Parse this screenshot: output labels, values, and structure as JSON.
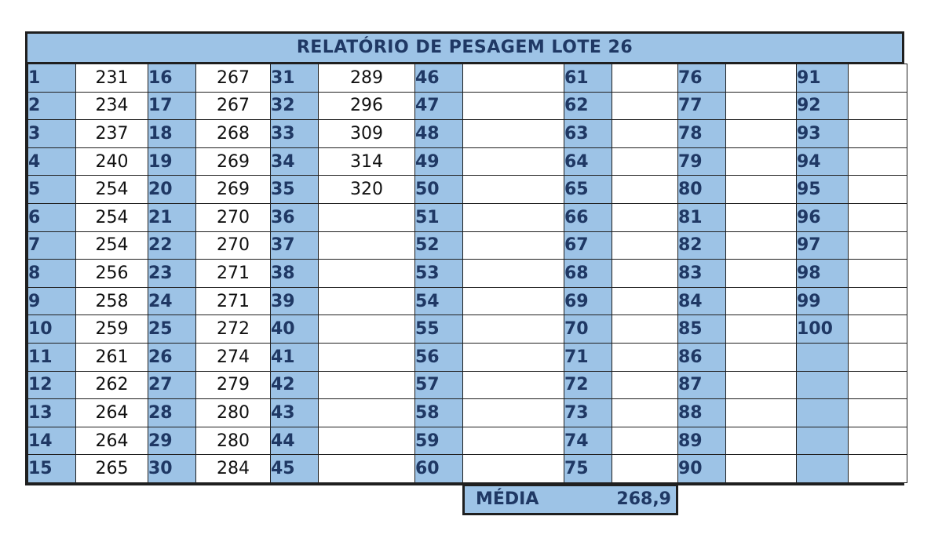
{
  "title": "RELATÓRIO DE PESAGEM LOTE 26",
  "columns": [
    {
      "numbers": [
        "1",
        "2",
        "3",
        "4",
        "5",
        "6",
        "7",
        "8",
        "9",
        "10",
        "11",
        "12",
        "13",
        "14",
        "15"
      ],
      "weights": [
        "231",
        "234",
        "237",
        "240",
        "254",
        "254",
        "254",
        "256",
        "258",
        "259",
        "261",
        "262",
        "264",
        "264",
        "265"
      ]
    },
    {
      "numbers": [
        "16",
        "17",
        "18",
        "19",
        "20",
        "21",
        "22",
        "23",
        "24",
        "25",
        "26",
        "27",
        "28",
        "29",
        "30"
      ],
      "weights": [
        "267",
        "267",
        "268",
        "269",
        "269",
        "270",
        "270",
        "271",
        "271",
        "272",
        "274",
        "279",
        "280",
        "280",
        "284"
      ]
    },
    {
      "numbers": [
        "31",
        "32",
        "33",
        "34",
        "35",
        "36",
        "37",
        "38",
        "39",
        "40",
        "41",
        "42",
        "43",
        "44",
        "45"
      ],
      "weights": [
        "289",
        "296",
        "309",
        "314",
        "320",
        "",
        "",
        "",
        "",
        "",
        "",
        "",
        "",
        "",
        ""
      ]
    },
    {
      "numbers": [
        "46",
        "47",
        "48",
        "49",
        "50",
        "51",
        "52",
        "53",
        "54",
        "55",
        "56",
        "57",
        "58",
        "59",
        "60"
      ],
      "weights": [
        "",
        "",
        "",
        "",
        "",
        "",
        "",
        "",
        "",
        "",
        "",
        "",
        "",
        "",
        ""
      ]
    },
    {
      "numbers": [
        "61",
        "62",
        "63",
        "64",
        "65",
        "66",
        "67",
        "68",
        "69",
        "70",
        "71",
        "72",
        "73",
        "74",
        "75"
      ],
      "weights": [
        "",
        "",
        "",
        "",
        "",
        "",
        "",
        "",
        "",
        "",
        "",
        "",
        "",
        "",
        ""
      ]
    },
    {
      "numbers": [
        "76",
        "77",
        "78",
        "79",
        "80",
        "81",
        "82",
        "83",
        "84",
        "85",
        "86",
        "87",
        "88",
        "89",
        "90"
      ],
      "weights": [
        "",
        "",
        "",
        "",
        "",
        "",
        "",
        "",
        "",
        "",
        "",
        "",
        "",
        "",
        ""
      ]
    },
    {
      "numbers": [
        "91",
        "92",
        "93",
        "94",
        "95",
        "96",
        "97",
        "98",
        "99",
        "100",
        "",
        "",
        "",
        "",
        ""
      ],
      "weights": [
        "",
        "",
        "",
        "",
        "",
        "",
        "",
        "",
        "",
        "",
        "",
        "",
        "",
        "",
        ""
      ]
    }
  ],
  "summary": {
    "label": "MÉDIA",
    "value": "268,9"
  }
}
